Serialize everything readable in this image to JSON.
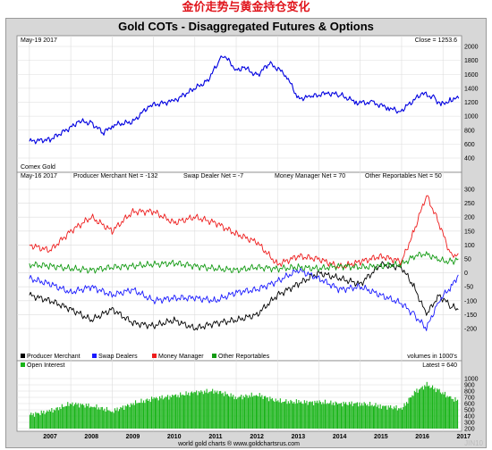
{
  "header": {
    "chinese_title": "金价走势与黄金持仓变化",
    "chart_title": "Gold COTs - Disaggregated Futures & Options"
  },
  "panels": {
    "price": {
      "date_label": "May-19  2017",
      "close_label": "Close = 1253.6",
      "series_label": "Comex Gold"
    },
    "cot": {
      "date_label": "May-16  2017",
      "net_labels": [
        "Producer Merchant Net = -132",
        "Swap Dealer Net = -7",
        "Money Manager Net = 70",
        "Other Reportables Net = 50"
      ],
      "units_label": "volumes in 1000's"
    },
    "oi": {
      "latest_label": "Latest = 640"
    }
  },
  "footer": {
    "credit": "world gold charts ® www.goldchartsrus.com",
    "watermark": "JIN10"
  },
  "colors": {
    "price": "#0000e0",
    "producer": "#000000",
    "swap": "#1a1aff",
    "money": "#ee1c1c",
    "other": "#129a12",
    "oi": "#18b418",
    "panel_bg": "#ffffff",
    "frame_bg": "#d7d7d7"
  },
  "chart_data": [
    {
      "type": "line",
      "title": "Comex Gold",
      "ylim": [
        400,
        2000
      ],
      "y_ticks": [
        400,
        600,
        800,
        1000,
        1200,
        1400,
        1600,
        1800,
        2000
      ],
      "x_ticks": [
        "2007",
        "2008",
        "2009",
        "2010",
        "2011",
        "2012",
        "2013",
        "2014",
        "2015",
        "2016",
        "2017"
      ],
      "x": [
        2007.0,
        2007.5,
        2008.0,
        2008.2,
        2008.5,
        2008.8,
        2009.0,
        2009.5,
        2009.9,
        2010.5,
        2011.0,
        2011.3,
        2011.6,
        2011.7,
        2012.0,
        2012.2,
        2012.5,
        2012.8,
        2013.2,
        2013.5,
        2013.8,
        2014.2,
        2014.5,
        2014.9,
        2015.3,
        2015.7,
        2015.95,
        2016.5,
        2016.8,
        2016.95,
        2017.2,
        2017.38
      ],
      "series": [
        {
          "values": [
            640,
            665,
            840,
            930,
            900,
            760,
            870,
            920,
            1150,
            1220,
            1400,
            1500,
            1800,
            1880,
            1660,
            1700,
            1580,
            1760,
            1600,
            1250,
            1280,
            1330,
            1310,
            1200,
            1190,
            1120,
            1060,
            1330,
            1260,
            1160,
            1240,
            1254
          ]
        }
      ]
    },
    {
      "type": "line",
      "ylim": [
        -200,
        300
      ],
      "y_ticks": [
        -200,
        -150,
        -100,
        -50,
        0,
        50,
        100,
        150,
        200,
        250,
        300
      ],
      "x_ticks": [
        "2007",
        "2008",
        "2009",
        "2010",
        "2011",
        "2012",
        "2013",
        "2014",
        "2015",
        "2016",
        "2017"
      ],
      "x": [
        2007.0,
        2007.5,
        2008.0,
        2008.5,
        2009.0,
        2009.5,
        2010.0,
        2010.5,
        2011.0,
        2011.5,
        2012.0,
        2012.5,
        2013.0,
        2013.5,
        2014.0,
        2014.5,
        2015.0,
        2015.5,
        2016.0,
        2016.3,
        2016.6,
        2016.9,
        2017.2,
        2017.37
      ],
      "series": [
        {
          "name": "Producer Merchant",
          "values": [
            -80,
            -100,
            -130,
            -170,
            -130,
            -180,
            -190,
            -170,
            -200,
            -180,
            -170,
            -150,
            -80,
            -40,
            0,
            -20,
            -40,
            30,
            20,
            -50,
            -150,
            -80,
            -120,
            -132
          ]
        },
        {
          "name": "Swap Dealers",
          "values": [
            -20,
            -40,
            -70,
            -50,
            -80,
            -60,
            -100,
            -90,
            -90,
            -100,
            -70,
            -60,
            -30,
            10,
            -20,
            -60,
            -50,
            -80,
            -110,
            -150,
            -200,
            -100,
            -50,
            -7
          ]
        },
        {
          "name": "Money Manager",
          "values": [
            100,
            80,
            150,
            200,
            150,
            220,
            220,
            180,
            200,
            180,
            140,
            110,
            30,
            60,
            50,
            20,
            40,
            60,
            40,
            150,
            280,
            180,
            60,
            70
          ]
        },
        {
          "name": "Other Reportables",
          "values": [
            30,
            25,
            15,
            10,
            20,
            25,
            30,
            35,
            25,
            15,
            10,
            20,
            15,
            20,
            15,
            25,
            20,
            25,
            30,
            60,
            70,
            45,
            40,
            50
          ]
        }
      ]
    },
    {
      "type": "bar",
      "title": "Open Interest",
      "ylim": [
        200,
        1000
      ],
      "y_ticks": [
        200,
        300,
        400,
        500,
        600,
        700,
        800,
        900,
        1000
      ],
      "x_ticks": [
        "2007",
        "2008",
        "2009",
        "2010",
        "2011",
        "2012",
        "2013",
        "2014",
        "2015",
        "2016",
        "2017"
      ],
      "x": [
        2007.0,
        2007.5,
        2008.0,
        2008.5,
        2009.0,
        2009.5,
        2010.0,
        2010.5,
        2011.0,
        2011.5,
        2012.0,
        2012.5,
        2013.0,
        2013.5,
        2014.0,
        2014.5,
        2015.0,
        2015.5,
        2016.0,
        2016.3,
        2016.6,
        2016.9,
        2017.2,
        2017.37
      ],
      "series": [
        {
          "name": "Open Interest",
          "values": [
            420,
            480,
            600,
            560,
            480,
            600,
            680,
            720,
            780,
            800,
            700,
            740,
            640,
            620,
            620,
            600,
            600,
            560,
            520,
            780,
            900,
            800,
            680,
            640
          ]
        }
      ]
    }
  ]
}
